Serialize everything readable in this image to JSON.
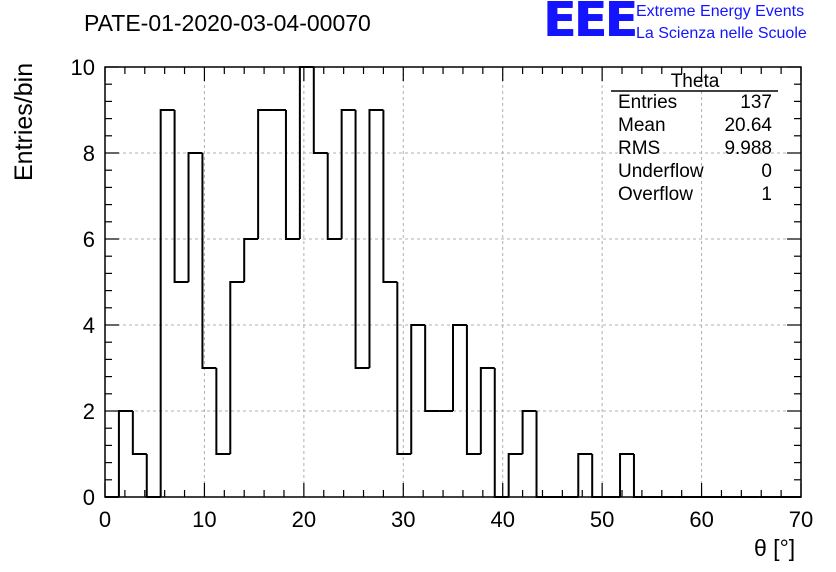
{
  "header": {
    "title": "PATE-01-2020-03-04-00070",
    "logo_text": "EEE",
    "logo_line1": "Extreme Energy Events",
    "logo_line2": "La Scienza nelle Scuole"
  },
  "stats_box": {
    "name": "Theta",
    "rows": [
      {
        "label": "Entries",
        "value": "137"
      },
      {
        "label": "Mean",
        "value": "20.64"
      },
      {
        "label": "RMS",
        "value": "9.988"
      },
      {
        "label": "Underflow",
        "value": "0"
      },
      {
        "label": "Overflow",
        "value": "1"
      }
    ]
  },
  "chart_data": {
    "type": "bar",
    "subtype": "histogram",
    "title": "PATE-01-2020-03-04-00070",
    "xlabel": "θ [°]",
    "ylabel": "Entries/bin",
    "xlim": [
      0,
      70
    ],
    "ylim": [
      0,
      10
    ],
    "x_ticks": [
      0,
      10,
      20,
      30,
      40,
      50,
      60,
      70
    ],
    "y_ticks": [
      0,
      2,
      4,
      6,
      8,
      10
    ],
    "grid": true,
    "bin_width": 1.4,
    "bin_edges_start": 0,
    "values": [
      0,
      2,
      1,
      0,
      9,
      5,
      8,
      3,
      1,
      5,
      6,
      9,
      9,
      6,
      10,
      8,
      6,
      9,
      3,
      9,
      5,
      1,
      4,
      2,
      2,
      4,
      1,
      3,
      0,
      1,
      2,
      0,
      0,
      0,
      1,
      0,
      0,
      1,
      0,
      0,
      0,
      0,
      0,
      0,
      0,
      0,
      0,
      0,
      0,
      0
    ],
    "color": "#000000"
  }
}
